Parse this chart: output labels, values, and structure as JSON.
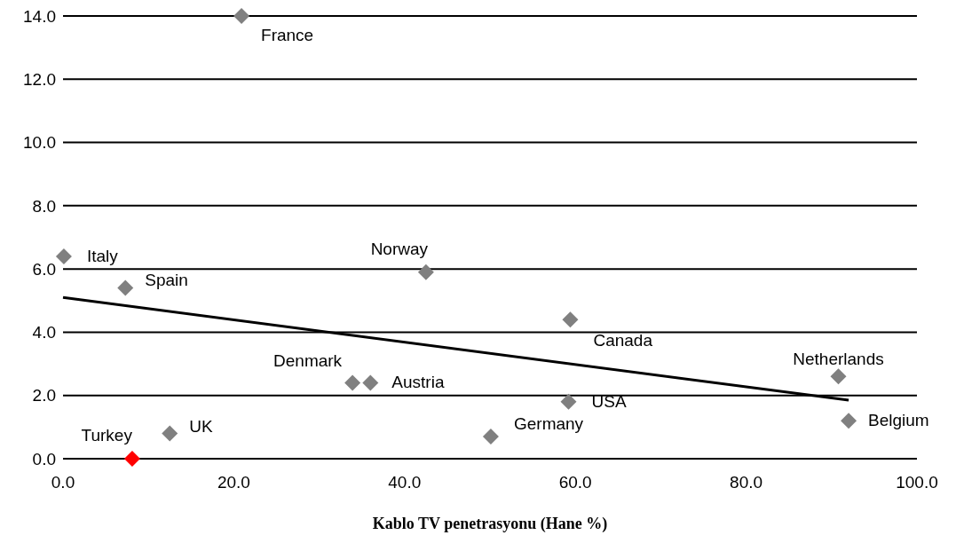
{
  "chart_data": {
    "type": "scatter",
    "xlabel": "Kablo TV penetrasyonu (Hane %)",
    "xlim": [
      0,
      100
    ],
    "xticks": [
      {
        "value": 0,
        "label": "0.0"
      },
      {
        "value": 20,
        "label": "20.0"
      },
      {
        "value": 40,
        "label": "40.0"
      },
      {
        "value": 60,
        "label": "60.0"
      },
      {
        "value": 80,
        "label": "80.0"
      },
      {
        "value": 100,
        "label": "100.0"
      }
    ],
    "ylim": [
      0,
      14
    ],
    "yticks": [
      {
        "value": 0,
        "label": "0.0"
      },
      {
        "value": 2,
        "label": "2.0"
      },
      {
        "value": 4,
        "label": "4.0"
      },
      {
        "value": 6,
        "label": "6.0"
      },
      {
        "value": 8,
        "label": "8.0"
      },
      {
        "value": 10,
        "label": "10.0"
      },
      {
        "value": 12,
        "label": "12.0"
      },
      {
        "value": 14,
        "label": "14.0"
      }
    ],
    "grid": "y",
    "marker": "diamond",
    "series": [
      {
        "x": [
          20.9,
          0.1,
          7.3,
          42.5,
          59.4,
          90.8,
          92.0,
          33.9,
          36.0,
          59.2,
          50.1,
          12.5,
          8.1
        ],
        "values": [
          14.0,
          6.4,
          5.4,
          5.9,
          4.4,
          2.6,
          1.2,
          2.4,
          2.4,
          1.8,
          0.7,
          0.8,
          0.0
        ],
        "colors": [
          "#808080",
          "#808080",
          "#808080",
          "#808080",
          "#808080",
          "#808080",
          "#808080",
          "#808080",
          "#808080",
          "#808080",
          "#808080",
          "#808080",
          "#ff0000"
        ]
      },
      {
        "type": "line",
        "x": [
          0,
          92
        ],
        "values": [
          5.1,
          1.85
        ],
        "color": "#000000",
        "marker": "none"
      }
    ],
    "annotations": [
      {
        "text": "France",
        "x": 20.9,
        "y": 14.0
      },
      {
        "text": "Italy",
        "x": 0.1,
        "y": 6.4
      },
      {
        "text": "Spain",
        "x": 7.3,
        "y": 5.4
      },
      {
        "text": "Norway",
        "x": 42.5,
        "y": 5.9
      },
      {
        "text": "Canada",
        "x": 59.4,
        "y": 4.4
      },
      {
        "text": "Netherlands",
        "x": 90.8,
        "y": 2.6
      },
      {
        "text": "Belgium",
        "x": 92.0,
        "y": 1.2
      },
      {
        "text": "Denmark",
        "x": 33.9,
        "y": 2.4
      },
      {
        "text": "Austria",
        "x": 36.0,
        "y": 2.4
      },
      {
        "text": "USA",
        "x": 59.2,
        "y": 1.8
      },
      {
        "text": "Germany",
        "x": 50.1,
        "y": 0.7
      },
      {
        "text": "UK",
        "x": 12.5,
        "y": 0.8
      },
      {
        "text": "Turkey",
        "x": 8.1,
        "y": 0.0
      }
    ]
  }
}
